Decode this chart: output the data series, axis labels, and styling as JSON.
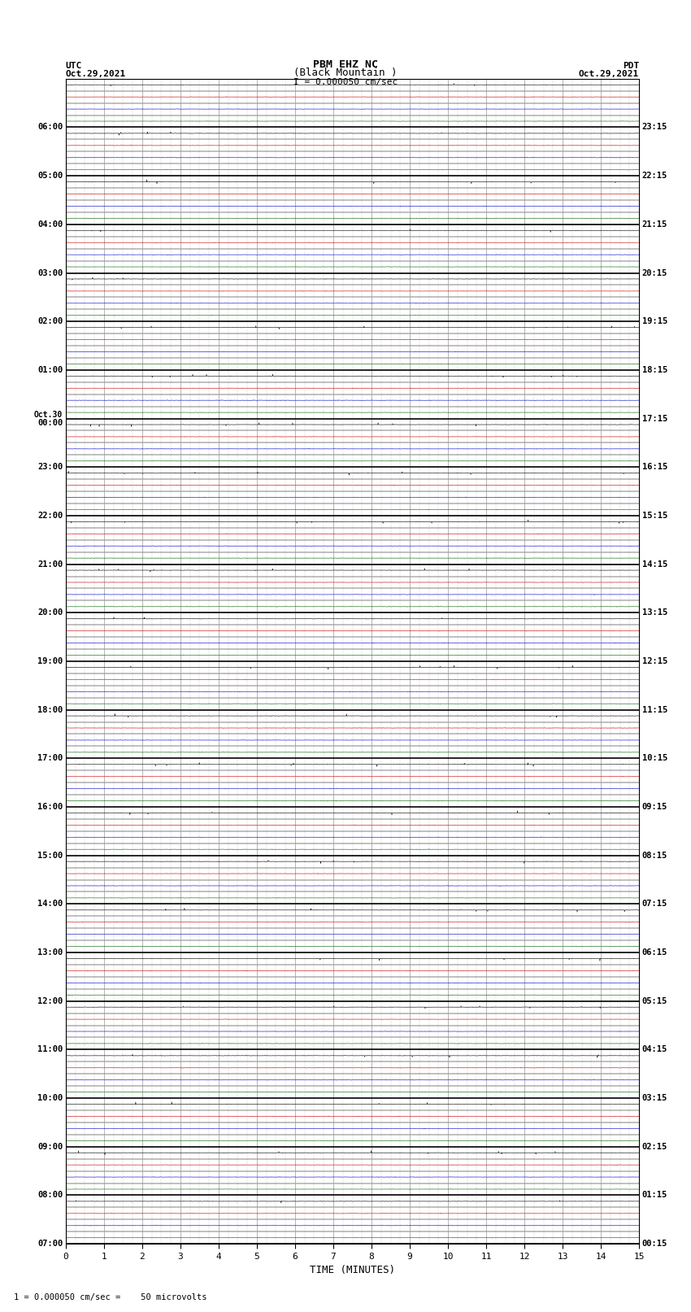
{
  "title_line1": "PBM EHZ NC",
  "title_line2": "(Black Mountain )",
  "scale_text": "I = 0.000050 cm/sec",
  "left_label": "UTC",
  "left_date": "Oct.29,2021",
  "right_label": "PDT",
  "right_date": "Oct.29,2021",
  "xlabel": "TIME (MINUTES)",
  "bottom_note": "1 = 0.000050 cm/sec =    50 microvolts",
  "utc_labels": [
    "07:00",
    "08:00",
    "09:00",
    "10:00",
    "11:00",
    "12:00",
    "13:00",
    "14:00",
    "15:00",
    "16:00",
    "17:00",
    "18:00",
    "19:00",
    "20:00",
    "21:00",
    "22:00",
    "23:00",
    "Oct.30\n00:00",
    "01:00",
    "02:00",
    "03:00",
    "04:00",
    "05:00",
    "06:00"
  ],
  "pdt_labels": [
    "00:15",
    "01:15",
    "02:15",
    "03:15",
    "04:15",
    "05:15",
    "06:15",
    "07:15",
    "08:15",
    "09:15",
    "10:15",
    "11:15",
    "12:15",
    "13:15",
    "14:15",
    "15:15",
    "16:15",
    "17:15",
    "18:15",
    "19:15",
    "20:15",
    "21:15",
    "22:15",
    "23:15"
  ],
  "num_rows": 96,
  "rows_per_hour": 4,
  "num_hours": 24,
  "x_min": 0,
  "x_max": 15,
  "x_ticks": [
    0,
    1,
    2,
    3,
    4,
    5,
    6,
    7,
    8,
    9,
    10,
    11,
    12,
    13,
    14,
    15
  ],
  "bg_color": "#ffffff",
  "row_colors": [
    "#000000",
    "#cc0000",
    "#0000cc",
    "#006600"
  ],
  "grid_color": "#999999",
  "hour_line_color": "#000000",
  "noise_amplitude": 0.06,
  "spike_probability": 0.003,
  "spike_amplitude": 0.25
}
